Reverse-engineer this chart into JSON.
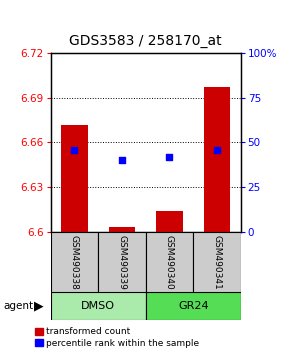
{
  "title": "GDS3583 / 258170_at",
  "samples": [
    "GSM490338",
    "GSM490339",
    "GSM490340",
    "GSM490341"
  ],
  "red_values": [
    6.672,
    6.603,
    6.614,
    6.697
  ],
  "blue_values": [
    6.655,
    6.648,
    6.65,
    6.655
  ],
  "ylim_left": [
    6.6,
    6.72
  ],
  "ylim_right": [
    0,
    100
  ],
  "yticks_left": [
    6.6,
    6.63,
    6.66,
    6.69,
    6.72
  ],
  "yticks_right": [
    0,
    25,
    50,
    75,
    100
  ],
  "ytick_labels_right": [
    "0",
    "25",
    "50",
    "75",
    "100%"
  ],
  "grid_values": [
    6.63,
    6.66,
    6.69
  ],
  "bar_width": 0.55,
  "legend_red": "transformed count",
  "legend_blue": "percentile rank within the sample",
  "background_color": "#ffffff",
  "sample_box_color": "#cccccc",
  "dmso_color": "#aaeaaa",
  "gr24_color": "#55dd55",
  "title_fontsize": 10,
  "tick_fontsize": 7.5,
  "sample_fontsize": 6.5,
  "group_fontsize": 8
}
